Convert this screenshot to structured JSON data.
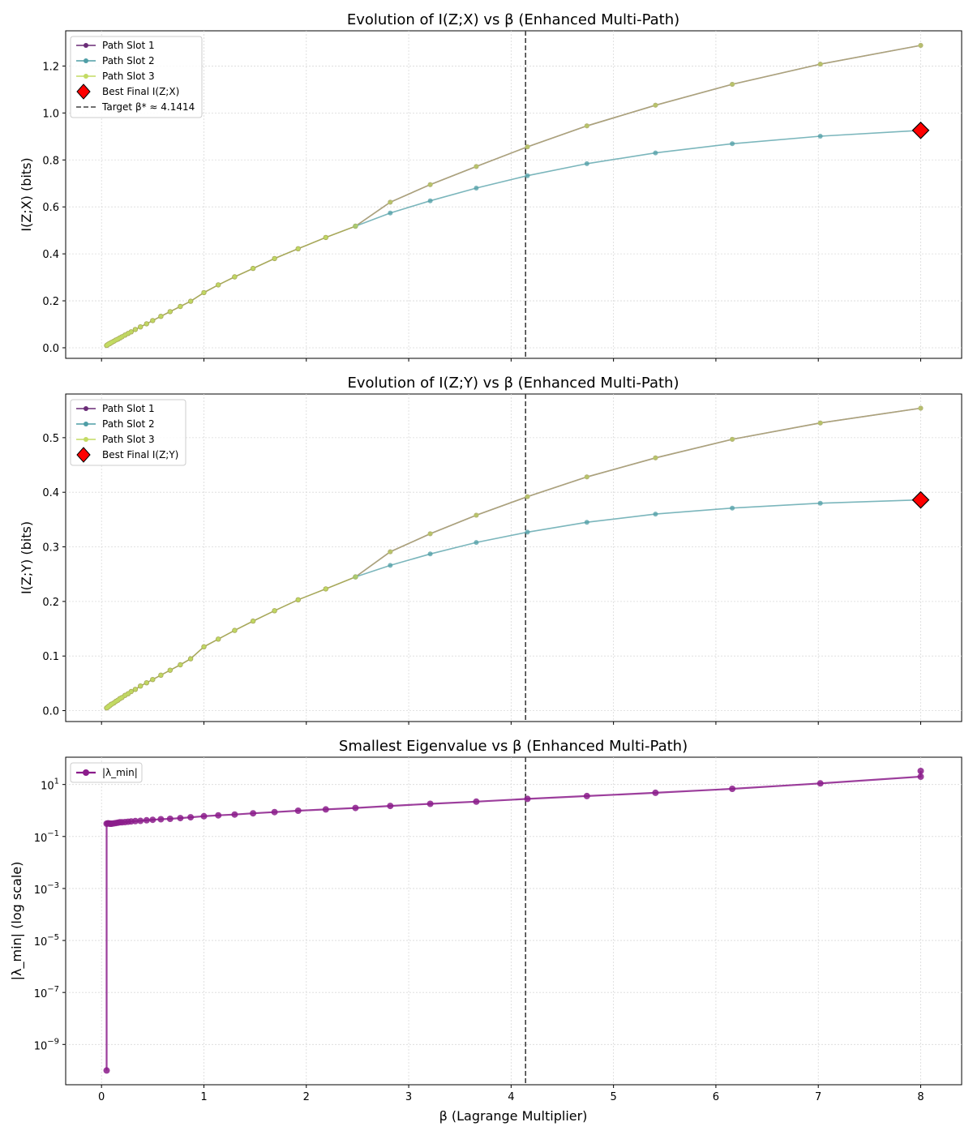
{
  "colors": {
    "slot1": "#6a2c77",
    "slot2": "#4f9ea6",
    "slot3": "#c3db63",
    "overlap": "#a7a85a",
    "best": "#ff0000",
    "target": "#404040",
    "lambda": "#8b1c8b",
    "grid": "#d9d9d9"
  },
  "xlabel": "β (Lagrange Multiplier)",
  "xticks": [
    "0",
    "1",
    "2",
    "3",
    "4",
    "5",
    "6",
    "7",
    "8"
  ],
  "chart_data": [
    {
      "type": "line",
      "title": "Evolution of I(Z;X) vs β (Enhanced Multi-Path)",
      "ylabel": "I(Z;X) (bits)",
      "xlim": [
        -0.35,
        8.4
      ],
      "ylim": [
        -0.045,
        1.35
      ],
      "yticks": [
        "0.0",
        "0.2",
        "0.4",
        "0.6",
        "0.8",
        "1.0",
        "1.2"
      ],
      "target_x": 4.1414,
      "legend": {
        "position": "top-left",
        "entries": [
          "Path Slot 1",
          "Path Slot 2",
          "Path Slot 3",
          "Best Final I(Z;X)",
          "Target β* ≈ 4.1414"
        ]
      },
      "shared_x": [
        0.05,
        0.06,
        0.07,
        0.08,
        0.09,
        0.1,
        0.12,
        0.14,
        0.16,
        0.18,
        0.2,
        0.23,
        0.26,
        0.29,
        0.33,
        0.38,
        0.44,
        0.5,
        0.58,
        0.67,
        0.77,
        0.87,
        1.0,
        1.14,
        1.3,
        1.48,
        1.69,
        1.92,
        2.19,
        2.48
      ],
      "shared_y": [
        0.01,
        0.013,
        0.016,
        0.018,
        0.021,
        0.023,
        0.028,
        0.033,
        0.037,
        0.042,
        0.047,
        0.054,
        0.061,
        0.068,
        0.078,
        0.089,
        0.102,
        0.116,
        0.134,
        0.154,
        0.176,
        0.198,
        0.235,
        0.268,
        0.302,
        0.338,
        0.38,
        0.422,
        0.47,
        0.518
      ],
      "series": [
        {
          "name": "Path Slot 1",
          "x": [
            2.48,
            2.82,
            3.21,
            3.66,
            4.16,
            4.74,
            5.41,
            6.16,
            7.02,
            8.0
          ],
          "y": [
            0.518,
            0.62,
            0.695,
            0.772,
            0.856,
            0.945,
            1.033,
            1.122,
            1.208,
            1.288
          ]
        },
        {
          "name": "Path Slot 2",
          "x": [
            2.48,
            2.82,
            3.21,
            3.66,
            4.16,
            4.74,
            5.41,
            6.16,
            7.02,
            8.0
          ],
          "y": [
            0.518,
            0.574,
            0.626,
            0.68,
            0.733,
            0.784,
            0.83,
            0.869,
            0.901,
            0.926
          ]
        },
        {
          "name": "Path Slot 3",
          "x": [
            2.48,
            2.82,
            3.21,
            3.66,
            4.16,
            4.74,
            5.41,
            6.16,
            7.02,
            8.0
          ],
          "y": [
            0.518,
            0.62,
            0.695,
            0.772,
            0.856,
            0.945,
            1.033,
            1.122,
            1.208,
            1.288
          ]
        }
      ],
      "best": {
        "label": "Best Final I(Z;X)",
        "x": 8.0,
        "y": 0.926
      }
    },
    {
      "type": "line",
      "title": "Evolution of I(Z;Y) vs β (Enhanced Multi-Path)",
      "ylabel": "I(Z;Y) (bits)",
      "xlim": [
        -0.35,
        8.4
      ],
      "ylim": [
        -0.02,
        0.58
      ],
      "yticks": [
        "0.0",
        "0.1",
        "0.2",
        "0.3",
        "0.4",
        "0.5"
      ],
      "target_x": 4.1414,
      "legend": {
        "position": "top-left",
        "entries": [
          "Path Slot 1",
          "Path Slot 2",
          "Path Slot 3",
          "Best Final I(Z;Y)"
        ]
      },
      "shared_x": [
        0.05,
        0.06,
        0.07,
        0.08,
        0.09,
        0.1,
        0.12,
        0.14,
        0.16,
        0.18,
        0.2,
        0.23,
        0.26,
        0.29,
        0.33,
        0.38,
        0.44,
        0.5,
        0.58,
        0.67,
        0.77,
        0.87,
        1.0,
        1.14,
        1.3,
        1.48,
        1.69,
        1.92,
        2.19,
        2.48
      ],
      "shared_y": [
        0.005,
        0.006,
        0.008,
        0.009,
        0.011,
        0.012,
        0.014,
        0.017,
        0.019,
        0.022,
        0.024,
        0.028,
        0.031,
        0.035,
        0.039,
        0.045,
        0.051,
        0.057,
        0.065,
        0.074,
        0.084,
        0.095,
        0.117,
        0.131,
        0.147,
        0.164,
        0.183,
        0.203,
        0.223,
        0.245
      ],
      "series": [
        {
          "name": "Path Slot 1",
          "x": [
            2.48,
            2.82,
            3.21,
            3.66,
            4.16,
            4.74,
            5.41,
            6.16,
            7.02,
            8.0
          ],
          "y": [
            0.245,
            0.291,
            0.324,
            0.358,
            0.392,
            0.428,
            0.463,
            0.497,
            0.527,
            0.554
          ]
        },
        {
          "name": "Path Slot 2",
          "x": [
            2.48,
            2.82,
            3.21,
            3.66,
            4.16,
            4.74,
            5.41,
            6.16,
            7.02,
            8.0
          ],
          "y": [
            0.245,
            0.266,
            0.287,
            0.308,
            0.327,
            0.345,
            0.36,
            0.371,
            0.38,
            0.386
          ]
        },
        {
          "name": "Path Slot 3",
          "x": [
            2.48,
            2.82,
            3.21,
            3.66,
            4.16,
            4.74,
            5.41,
            6.16,
            7.02,
            8.0
          ],
          "y": [
            0.245,
            0.291,
            0.324,
            0.358,
            0.392,
            0.428,
            0.463,
            0.497,
            0.527,
            0.554
          ]
        }
      ],
      "best": {
        "label": "Best Final I(Z;Y)",
        "x": 8.0,
        "y": 0.386
      }
    },
    {
      "type": "line",
      "title": "Smallest Eigenvalue vs β (Enhanced Multi-Path)",
      "ylabel": "|λ_min| (log scale)",
      "yscale": "log",
      "xlim": [
        -0.35,
        8.4
      ],
      "ylim_log10": [
        -10.55,
        2.05
      ],
      "yticks": [
        {
          "base": "10",
          "exp": "−9",
          "value": -9
        },
        {
          "base": "10",
          "exp": "−7",
          "value": -7
        },
        {
          "base": "10",
          "exp": "−5",
          "value": -5
        },
        {
          "base": "10",
          "exp": "−3",
          "value": -3
        },
        {
          "base": "10",
          "exp": "−1",
          "value": -1
        },
        {
          "base": "10",
          "exp": "1",
          "value": 1
        }
      ],
      "target_x": 4.1414,
      "legend": {
        "position": "top-left",
        "entries": [
          "|λ_min|"
        ]
      },
      "series": [
        {
          "name": "|λ_min|",
          "x": [
            0.05,
            0.05,
            0.06,
            0.07,
            0.08,
            0.09,
            0.1,
            0.12,
            0.14,
            0.16,
            0.18,
            0.2,
            0.23,
            0.26,
            0.29,
            0.33,
            0.38,
            0.44,
            0.5,
            0.58,
            0.67,
            0.77,
            0.87,
            1.0,
            1.14,
            1.3,
            1.48,
            1.69,
            1.92,
            2.19,
            2.48,
            2.82,
            3.21,
            3.66,
            4.16,
            4.74,
            5.41,
            6.16,
            7.02,
            8.0,
            8.0
          ],
          "y": [
            1e-10,
            0.31,
            0.32,
            0.32,
            0.31,
            0.31,
            0.31,
            0.32,
            0.33,
            0.34,
            0.35,
            0.35,
            0.36,
            0.37,
            0.38,
            0.39,
            0.4,
            0.42,
            0.44,
            0.46,
            0.48,
            0.51,
            0.55,
            0.6,
            0.65,
            0.7,
            0.78,
            0.87,
            0.98,
            1.1,
            1.25,
            1.5,
            1.8,
            2.2,
            2.8,
            3.6,
            4.8,
            6.8,
            11.0,
            20.0,
            33.0
          ]
        }
      ]
    }
  ]
}
